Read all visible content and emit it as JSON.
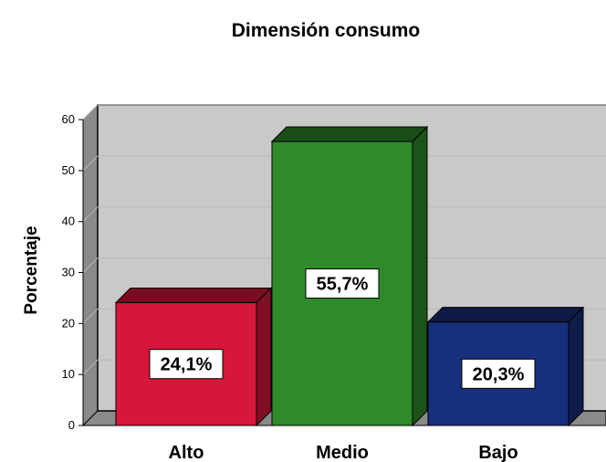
{
  "chart_data": {
    "type": "bar",
    "title": "Dimensión consumo",
    "xlabel": "",
    "ylabel": "Porcentaje",
    "categories": [
      "Alto",
      "Medio",
      "Bajo"
    ],
    "values": [
      24.1,
      55.7,
      20.3
    ],
    "data_labels": [
      "24,1%",
      "55,7%",
      "20,3%"
    ],
    "ylim": [
      0,
      60
    ],
    "yticks": [
      "0",
      "10",
      "20",
      "30",
      "40",
      "50",
      "60"
    ],
    "grid": true,
    "legend": "none",
    "style": "3d",
    "colors": [
      "#d7173a",
      "#2f8a2a",
      "#172f7c"
    ],
    "plot_background": "#c9c9c9"
  }
}
